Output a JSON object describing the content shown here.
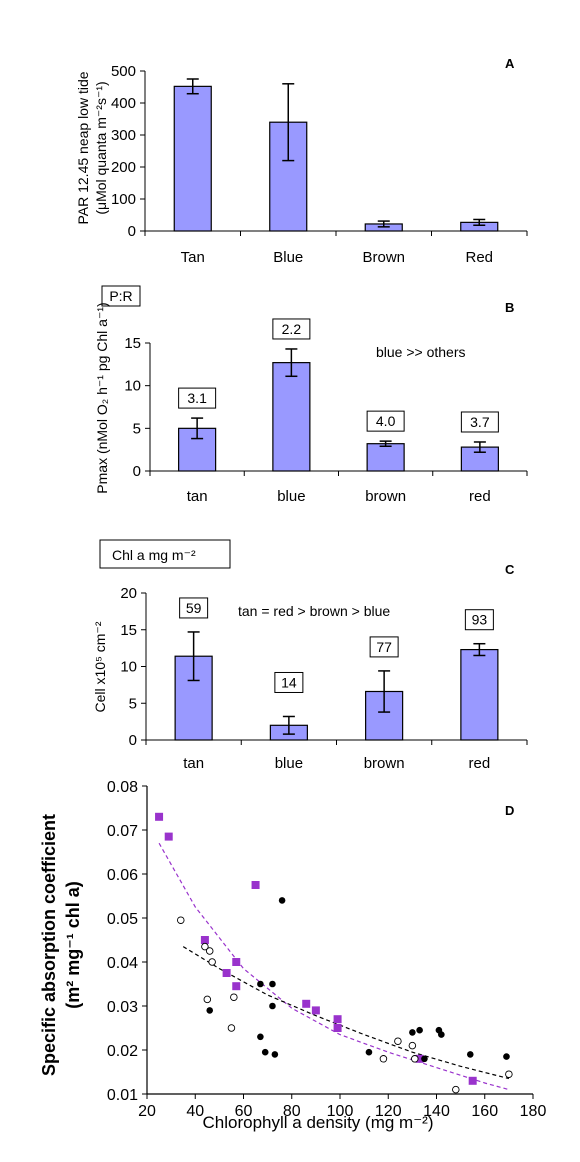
{
  "chart_data": [
    {
      "type": "bar",
      "panel": "A",
      "categories": [
        "Tan",
        "Blue",
        "Brown",
        "Red"
      ],
      "values": [
        452,
        340,
        22,
        27
      ],
      "errors": [
        23,
        120,
        9,
        9
      ],
      "ylabel_line1": "PAR 12.45 neap low tide",
      "ylabel_line2": "(μMol quanta m⁻²s⁻¹)",
      "ylim": [
        0,
        500
      ],
      "yticks": [
        0,
        100,
        200,
        300,
        400,
        500
      ],
      "bar_color": "#9999ff"
    },
    {
      "type": "bar",
      "panel": "B",
      "categories": [
        "tan",
        "blue",
        "brown",
        "red"
      ],
      "values": [
        5.0,
        12.7,
        3.2,
        2.8
      ],
      "errors": [
        1.2,
        1.6,
        0.3,
        0.6
      ],
      "bar_labels": [
        "3.1",
        "2.2",
        "4.0",
        "3.7"
      ],
      "box_title": "P:R",
      "annotation": "blue >> others",
      "ylabel": "Pmax (nMol O₂ h⁻¹ pg Chl a⁻¹)",
      "ylim": [
        0,
        15
      ],
      "yticks": [
        0,
        5,
        10,
        15
      ],
      "bar_color": "#9999ff"
    },
    {
      "type": "bar",
      "panel": "C",
      "categories": [
        "tan",
        "blue",
        "brown",
        "red"
      ],
      "values": [
        11.4,
        2.0,
        6.6,
        12.3
      ],
      "errors": [
        3.3,
        1.2,
        2.8,
        0.8
      ],
      "bar_labels": [
        "59",
        "14",
        "77",
        "93"
      ],
      "box_title": "Chl a mg m⁻²",
      "annotation": "tan = red > brown > blue",
      "ylabel": "Cell x10⁵ cm⁻²",
      "ylim": [
        0,
        20
      ],
      "yticks": [
        0,
        5,
        10,
        15,
        20
      ],
      "bar_color": "#9999ff"
    },
    {
      "type": "scatter",
      "panel": "D",
      "xlabel": "Chlorophyll a density (mg m⁻²)",
      "ylabel_line1": "Specific absorption coefficient",
      "ylabel_line2": "(m² mg⁻¹ chl a)",
      "xlim": [
        20,
        180
      ],
      "ylim": [
        0.01,
        0.08
      ],
      "xticks": [
        20,
        40,
        60,
        80,
        100,
        120,
        140,
        160,
        180
      ],
      "yticks": [
        0.01,
        0.02,
        0.03,
        0.04,
        0.05,
        0.06,
        0.07,
        0.08
      ],
      "series": [
        {
          "marker": "square",
          "color": "#9933cc",
          "points": [
            [
              25,
              0.073
            ],
            [
              29,
              0.0685
            ],
            [
              44,
              0.045
            ],
            [
              53,
              0.0375
            ],
            [
              57,
              0.04
            ],
            [
              57,
              0.0345
            ],
            [
              65,
              0.0575
            ],
            [
              86,
              0.0305
            ],
            [
              90,
              0.029
            ],
            [
              99,
              0.027
            ],
            [
              99,
              0.025
            ],
            [
              133,
              0.018
            ],
            [
              155,
              0.013
            ]
          ]
        },
        {
          "marker": "filled-circle",
          "color": "#000000",
          "points": [
            [
              46,
              0.029
            ],
            [
              67,
              0.035
            ],
            [
              67,
              0.023
            ],
            [
              69,
              0.0195
            ],
            [
              72,
              0.035
            ],
            [
              72,
              0.03
            ],
            [
              73,
              0.019
            ],
            [
              76,
              0.054
            ],
            [
              112,
              0.0195
            ],
            [
              130,
              0.024
            ],
            [
              133,
              0.0245
            ],
            [
              135,
              0.018
            ],
            [
              141,
              0.0245
            ],
            [
              142,
              0.0235
            ],
            [
              154,
              0.019
            ],
            [
              169,
              0.0185
            ]
          ]
        },
        {
          "marker": "open-circle",
          "color": "#000000",
          "points": [
            [
              34,
              0.0495
            ],
            [
              44,
              0.0435
            ],
            [
              45,
              0.0315
            ],
            [
              46,
              0.0425
            ],
            [
              47,
              0.04
            ],
            [
              55,
              0.025
            ],
            [
              56,
              0.032
            ],
            [
              118,
              0.018
            ],
            [
              124,
              0.022
            ],
            [
              130,
              0.021
            ],
            [
              131,
              0.018
            ],
            [
              148,
              0.011
            ],
            [
              170,
              0.0145
            ]
          ]
        }
      ],
      "trendlines": [
        {
          "color": "#9933cc",
          "dash": "4 3",
          "points": [
            [
              25,
              0.067
            ],
            [
              40,
              0.0525
            ],
            [
              60,
              0.0385
            ],
            [
              80,
              0.0295
            ],
            [
              100,
              0.0235
            ],
            [
              120,
              0.0195
            ],
            [
              140,
              0.016
            ],
            [
              160,
              0.0125
            ],
            [
              170,
              0.011
            ]
          ]
        },
        {
          "color": "#000000",
          "dash": "4 3",
          "points": [
            [
              35,
              0.0435
            ],
            [
              50,
              0.0385
            ],
            [
              70,
              0.0325
            ],
            [
              90,
              0.0278
            ],
            [
              110,
              0.0235
            ],
            [
              130,
              0.0195
            ],
            [
              150,
              0.0163
            ],
            [
              170,
              0.0135
            ]
          ]
        }
      ]
    }
  ]
}
